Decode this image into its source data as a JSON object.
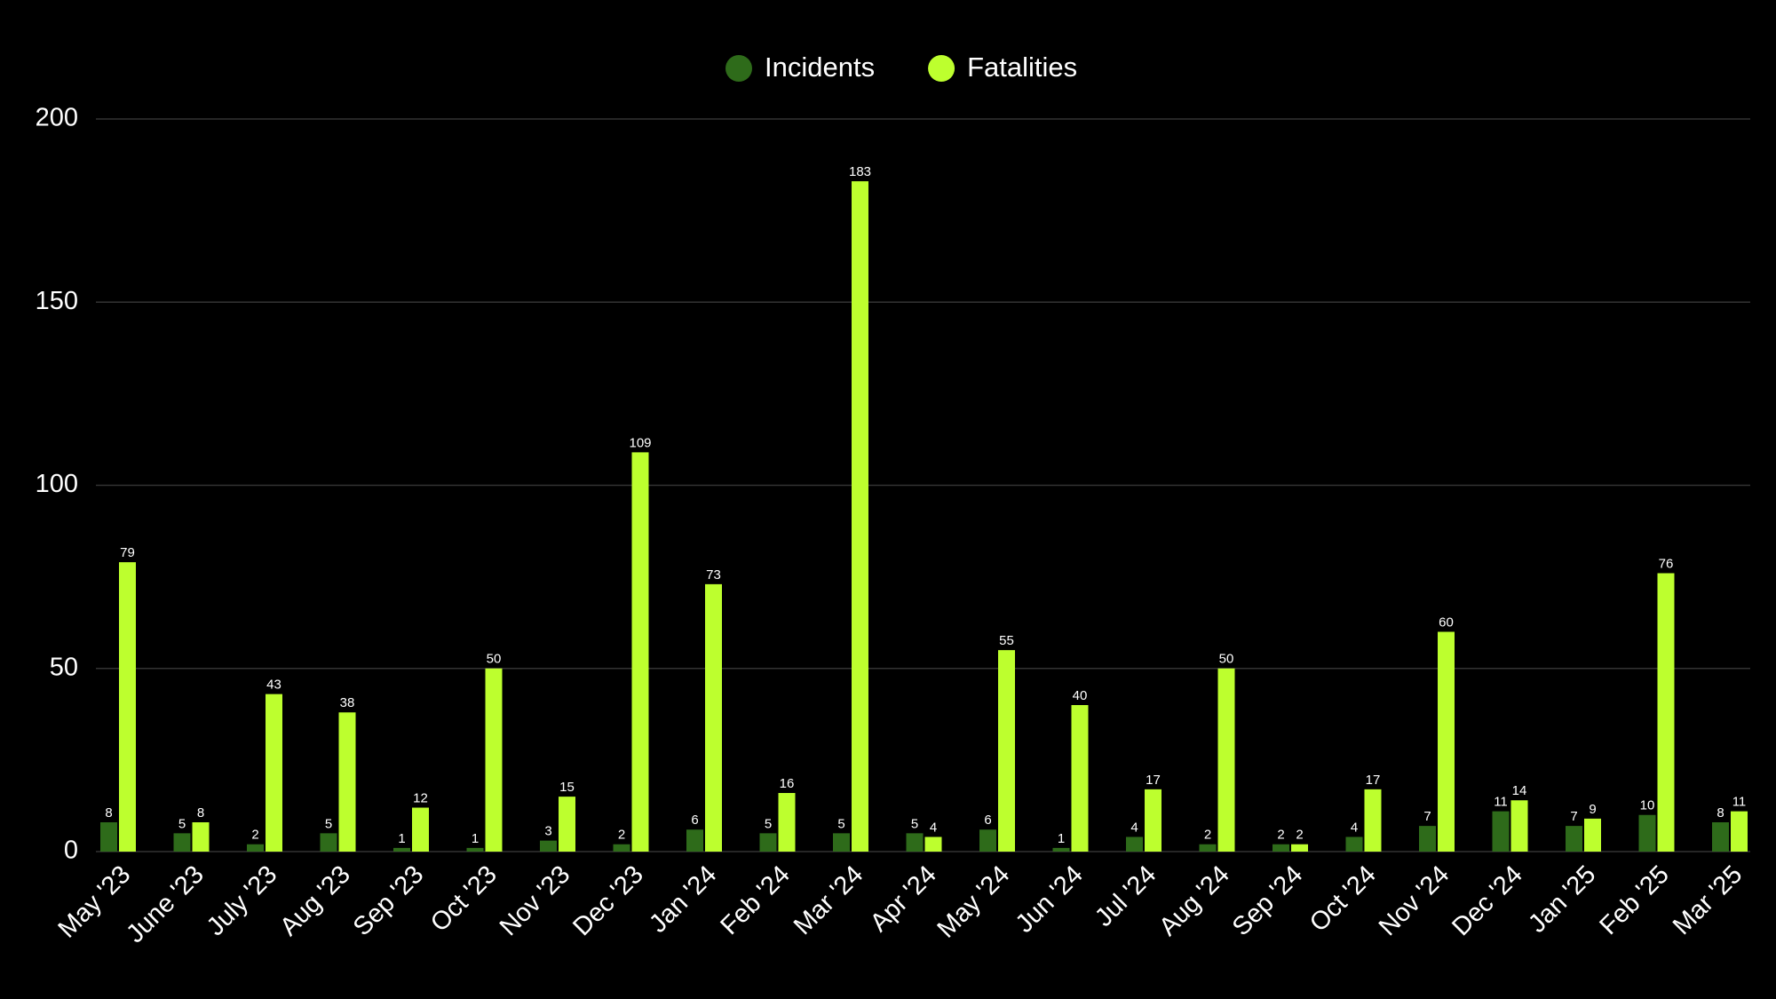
{
  "chart_data": {
    "type": "bar",
    "categories": [
      "May '23",
      "June '23",
      "July '23",
      "Aug '23",
      "Sep '23",
      "Oct '23",
      "Nov '23",
      "Dec '23",
      "Jan '24",
      "Feb '24",
      "Mar '24",
      "Apr '24",
      "May '24",
      "Jun '24",
      "Jul '24",
      "Aug '24",
      "Sep '24",
      "Oct '24",
      "Nov '24",
      "Dec '24",
      "Jan '25",
      "Feb '25",
      "Mar '25"
    ],
    "series": [
      {
        "name": "Incidents",
        "color": "#2e6b1a",
        "values": [
          8,
          5,
          2,
          5,
          1,
          1,
          3,
          2,
          6,
          5,
          5,
          5,
          6,
          1,
          4,
          2,
          2,
          4,
          7,
          11,
          7,
          10,
          8
        ]
      },
      {
        "name": "Fatalities",
        "color": "#bdff2e",
        "values": [
          79,
          8,
          43,
          38,
          12,
          50,
          15,
          109,
          73,
          16,
          183,
          4,
          55,
          40,
          17,
          50,
          2,
          17,
          60,
          14,
          9,
          76,
          11
        ]
      }
    ],
    "ylim": [
      0,
      200
    ],
    "yticks": [
      0,
      50,
      100,
      150,
      200
    ],
    "grid": true,
    "legend": "top"
  }
}
